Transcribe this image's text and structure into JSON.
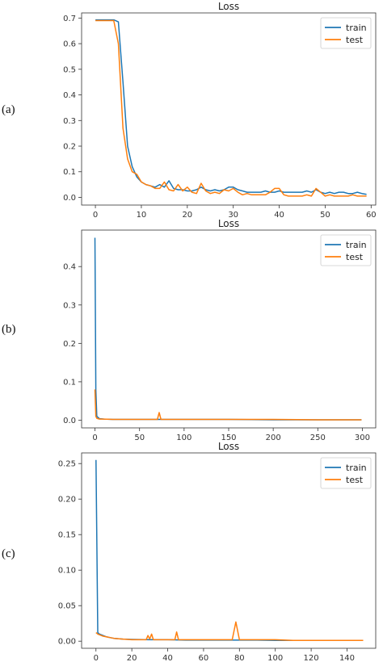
{
  "colors": {
    "train": "#1f77b4",
    "test": "#ff7f0e",
    "axis": "#333333"
  },
  "chart_data": [
    {
      "type": "line",
      "panel_label": "(a)",
      "title": "Loss",
      "xlabel": "",
      "ylabel": "",
      "xlim": [
        -3,
        61
      ],
      "ylim": [
        -0.03,
        0.72
      ],
      "xticks": [
        0,
        10,
        20,
        30,
        40,
        50,
        60
      ],
      "yticks": [
        0.0,
        0.1,
        0.2,
        0.3,
        0.4,
        0.5,
        0.6,
        0.7
      ],
      "legend": "top-right",
      "series": [
        {
          "name": "train",
          "x": [
            0,
            1,
            2,
            3,
            4,
            5,
            6,
            7,
            8,
            9,
            10,
            11,
            12,
            13,
            14,
            15,
            16,
            17,
            18,
            19,
            20,
            21,
            22,
            23,
            24,
            25,
            26,
            27,
            28,
            29,
            30,
            31,
            32,
            33,
            34,
            35,
            36,
            37,
            38,
            39,
            40,
            41,
            42,
            43,
            44,
            45,
            46,
            47,
            48,
            49,
            50,
            51,
            52,
            53,
            54,
            55,
            56,
            57,
            58,
            59
          ],
          "y": [
            0.693,
            0.693,
            0.693,
            0.693,
            0.693,
            0.685,
            0.45,
            0.2,
            0.12,
            0.08,
            0.06,
            0.05,
            0.045,
            0.04,
            0.05,
            0.04,
            0.065,
            0.035,
            0.03,
            0.03,
            0.025,
            0.025,
            0.03,
            0.04,
            0.03,
            0.025,
            0.03,
            0.025,
            0.03,
            0.04,
            0.04,
            0.03,
            0.025,
            0.02,
            0.02,
            0.02,
            0.02,
            0.025,
            0.02,
            0.02,
            0.025,
            0.02,
            0.02,
            0.02,
            0.02,
            0.02,
            0.025,
            0.02,
            0.03,
            0.02,
            0.015,
            0.02,
            0.015,
            0.02,
            0.02,
            0.015,
            0.015,
            0.02,
            0.015,
            0.012
          ]
        },
        {
          "name": "test",
          "x": [
            0,
            1,
            2,
            3,
            4,
            5,
            6,
            7,
            8,
            9,
            10,
            11,
            12,
            13,
            14,
            15,
            16,
            17,
            18,
            19,
            20,
            21,
            22,
            23,
            24,
            25,
            26,
            27,
            28,
            29,
            30,
            31,
            32,
            33,
            34,
            35,
            36,
            37,
            38,
            39,
            40,
            41,
            42,
            43,
            44,
            45,
            46,
            47,
            48,
            49,
            50,
            51,
            52,
            53,
            54,
            55,
            56,
            57,
            58,
            59
          ],
          "y": [
            0.69,
            0.69,
            0.69,
            0.69,
            0.69,
            0.6,
            0.27,
            0.15,
            0.1,
            0.09,
            0.06,
            0.05,
            0.045,
            0.035,
            0.035,
            0.06,
            0.03,
            0.025,
            0.05,
            0.025,
            0.04,
            0.02,
            0.015,
            0.055,
            0.025,
            0.015,
            0.02,
            0.015,
            0.03,
            0.025,
            0.035,
            0.02,
            0.01,
            0.015,
            0.01,
            0.01,
            0.01,
            0.01,
            0.02,
            0.035,
            0.035,
            0.01,
            0.005,
            0.005,
            0.005,
            0.005,
            0.01,
            0.005,
            0.035,
            0.02,
            0.005,
            0.01,
            0.005,
            0.005,
            0.005,
            0.005,
            0.01,
            0.005,
            0.005,
            0.005
          ]
        }
      ]
    },
    {
      "type": "line",
      "panel_label": "(b)",
      "title": "Loss",
      "xlabel": "",
      "ylabel": "",
      "xlim": [
        -15,
        315
      ],
      "ylim": [
        -0.02,
        0.495
      ],
      "xticks": [
        0,
        50,
        100,
        150,
        200,
        250,
        300
      ],
      "yticks": [
        0.0,
        0.1,
        0.2,
        0.3,
        0.4
      ],
      "legend": "top-right",
      "series": [
        {
          "name": "train",
          "x": [
            0,
            1,
            2,
            5,
            10,
            20,
            40,
            60,
            70,
            72,
            74,
            80,
            100,
            120,
            150,
            200,
            250,
            299
          ],
          "y": [
            0.475,
            0.08,
            0.01,
            0.004,
            0.003,
            0.002,
            0.002,
            0.002,
            0.002,
            0.002,
            0.002,
            0.002,
            0.002,
            0.002,
            0.002,
            0.001,
            0.001,
            0.001
          ]
        },
        {
          "name": "test",
          "x": [
            0,
            1,
            2,
            5,
            10,
            20,
            40,
            60,
            70,
            72,
            74,
            80,
            100,
            120,
            150,
            200,
            250,
            299
          ],
          "y": [
            0.08,
            0.01,
            0.005,
            0.003,
            0.003,
            0.002,
            0.002,
            0.002,
            0.002,
            0.02,
            0.002,
            0.002,
            0.002,
            0.002,
            0.002,
            0.002,
            0.001,
            0.001
          ]
        }
      ]
    },
    {
      "type": "line",
      "panel_label": "(c)",
      "title": "Loss",
      "xlabel": "",
      "ylabel": "",
      "xlim": [
        -8,
        156
      ],
      "ylim": [
        -0.01,
        0.265
      ],
      "xticks": [
        0,
        20,
        40,
        60,
        80,
        100,
        120,
        140
      ],
      "yticks": [
        0.0,
        0.05,
        0.1,
        0.15,
        0.2,
        0.25
      ],
      "legend": "top-right",
      "series": [
        {
          "name": "train",
          "x": [
            0,
            1,
            2,
            4,
            6,
            8,
            10,
            15,
            20,
            30,
            40,
            50,
            60,
            70,
            80,
            90,
            100,
            110,
            120,
            130,
            140,
            149
          ],
          "y": [
            0.255,
            0.012,
            0.01,
            0.008,
            0.006,
            0.005,
            0.004,
            0.003,
            0.0025,
            0.002,
            0.002,
            0.0015,
            0.0015,
            0.0015,
            0.0015,
            0.0015,
            0.001,
            0.001,
            0.001,
            0.001,
            0.001,
            0.001
          ]
        },
        {
          "name": "test",
          "x": [
            0,
            1,
            2,
            4,
            6,
            8,
            10,
            15,
            20,
            28,
            29,
            30,
            31,
            32,
            33,
            40,
            44,
            45,
            46,
            50,
            60,
            70,
            76,
            78,
            80,
            90,
            100,
            110,
            120,
            130,
            140,
            149
          ],
          "y": [
            0.012,
            0.01,
            0.009,
            0.007,
            0.006,
            0.005,
            0.004,
            0.003,
            0.002,
            0.002,
            0.008,
            0.003,
            0.01,
            0.002,
            0.002,
            0.002,
            0.002,
            0.013,
            0.002,
            0.002,
            0.002,
            0.002,
            0.002,
            0.027,
            0.002,
            0.002,
            0.002,
            0.001,
            0.001,
            0.001,
            0.001,
            0.001
          ]
        }
      ]
    }
  ]
}
